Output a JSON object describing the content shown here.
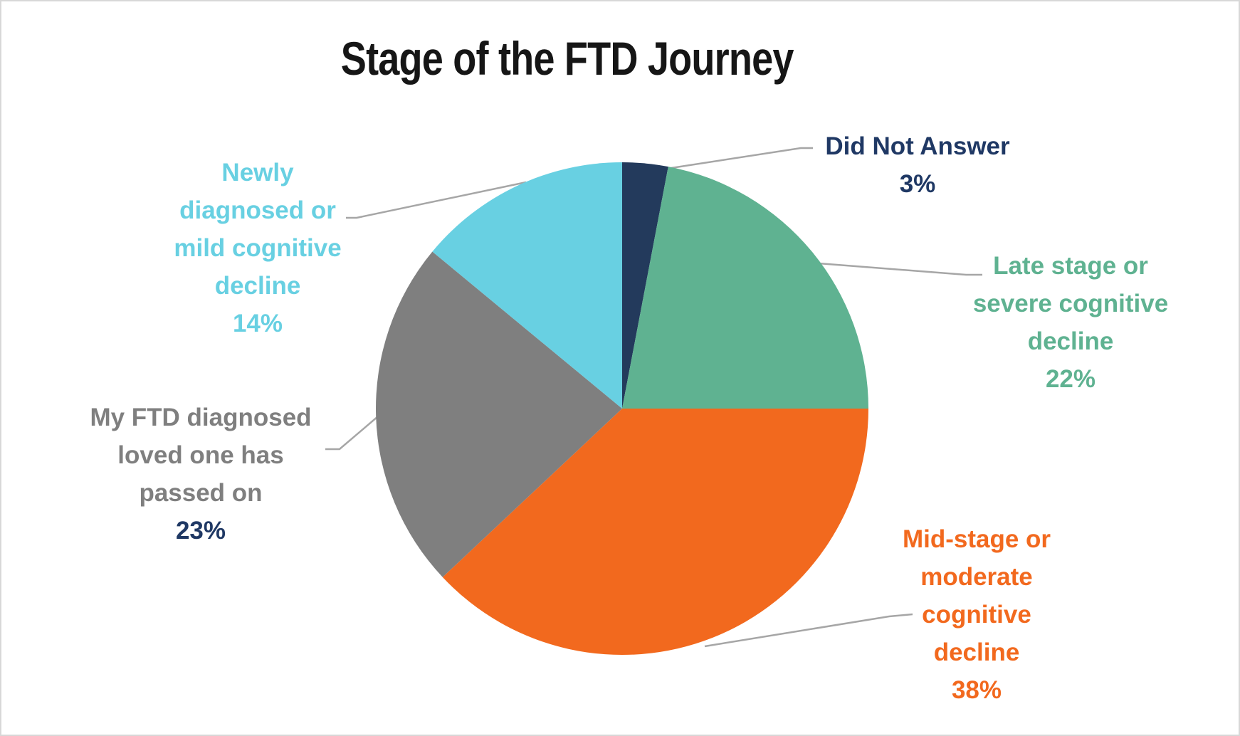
{
  "window": {
    "background": "#FFFFFF",
    "border_color": "#D8D8D8"
  },
  "chart_data": {
    "type": "pie",
    "title": "Stage of the FTD Journey",
    "title_color": "#161616",
    "start_angle_deg": 0,
    "direction": "clockwise",
    "legend": "none",
    "leader_line_color": "#A6A6A6",
    "categories": [
      "Did Not Answer",
      "Late stage or severe cognitive decline",
      "Mid-stage or moderate cognitive decline",
      "My FTD diagnosed loved one has passed on",
      "Newly diagnosed or mild cognitive decline"
    ],
    "values": [
      3,
      22,
      38,
      23,
      14
    ],
    "slices": [
      {
        "label": "Did Not Answer",
        "label_lines": [
          "Did Not Answer"
        ],
        "value_pct": 3,
        "pct_label": "3%",
        "color": "#233A5C",
        "label_color": "#1F3864",
        "pct_color": "#1F3864"
      },
      {
        "label": "Late stage or severe cognitive decline",
        "label_lines": [
          "Late stage or",
          "severe cognitive",
          "decline"
        ],
        "value_pct": 22,
        "pct_label": "22%",
        "color": "#5FB291",
        "label_color": "#5FB291",
        "pct_color": "#5FB291"
      },
      {
        "label": "Mid-stage or moderate cognitive decline",
        "label_lines": [
          "Mid-stage or",
          "moderate",
          "cognitive",
          "decline"
        ],
        "value_pct": 38,
        "pct_label": "38%",
        "color": "#F2691E",
        "label_color": "#F2691E",
        "pct_color": "#F2691E"
      },
      {
        "label": "My FTD diagnosed loved one has passed on",
        "label_lines": [
          "My FTD diagnosed",
          "loved one has",
          "passed on"
        ],
        "value_pct": 23,
        "pct_label": "23%",
        "color": "#7F7F7F",
        "label_color": "#7F7F7F",
        "pct_color": "#1F3864"
      },
      {
        "label": "Newly diagnosed or mild cognitive decline",
        "label_lines": [
          "Newly",
          "diagnosed or",
          "mild cognitive",
          "decline"
        ],
        "value_pct": 14,
        "pct_label": "14%",
        "color": "#68D0E2",
        "label_color": "#68D0E2",
        "pct_color": "#68D0E2"
      }
    ]
  }
}
